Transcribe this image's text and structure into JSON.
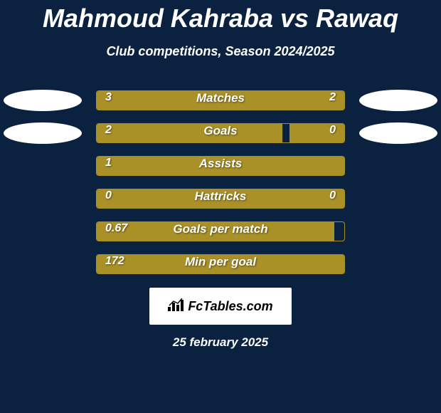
{
  "title": "Mahmoud Kahraba vs Rawaq",
  "subtitle": "Club competitions, Season 2024/2025",
  "background_color": "#0a2240",
  "bar_color": "#a99127",
  "text_color": "#ffffff",
  "stats": [
    {
      "label": "Matches",
      "left_value": "3",
      "right_value": "2",
      "left_width": 60,
      "right_width": 40,
      "show_ellipses": true,
      "show_right_value": true
    },
    {
      "label": "Goals",
      "left_value": "2",
      "right_value": "0",
      "left_width": 75,
      "right_width": 22,
      "show_ellipses": true,
      "show_right_value": true
    },
    {
      "label": "Assists",
      "left_value": "1",
      "right_value": "",
      "left_width": 100,
      "right_width": 0,
      "show_ellipses": false,
      "show_right_value": false
    },
    {
      "label": "Hattricks",
      "left_value": "0",
      "right_value": "0",
      "left_width": 100,
      "right_width": 0,
      "show_ellipses": false,
      "show_right_value": true
    },
    {
      "label": "Goals per match",
      "left_value": "0.67",
      "right_value": "",
      "left_width": 96,
      "right_width": 0,
      "show_ellipses": false,
      "show_right_value": false
    },
    {
      "label": "Min per goal",
      "left_value": "172",
      "right_value": "",
      "left_width": 100,
      "right_width": 0,
      "show_ellipses": false,
      "show_right_value": false
    }
  ],
  "footer_brand": "FcTables.com",
  "date": "25 february 2025"
}
